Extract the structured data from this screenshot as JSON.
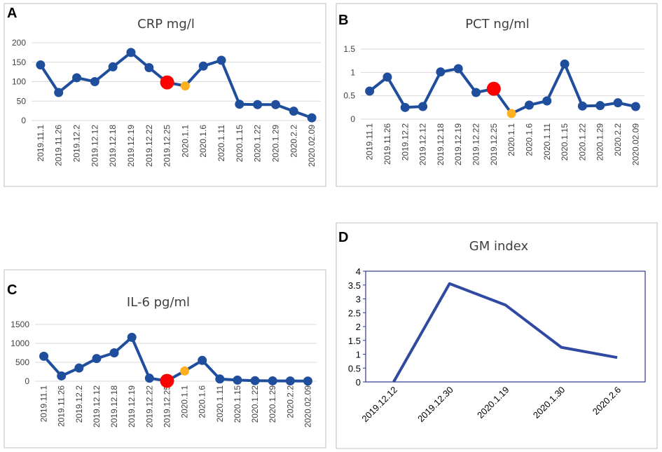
{
  "colors": {
    "line": "#1f4e9c",
    "marker": "#1f4e9c",
    "highlight_large": "#ff0000",
    "highlight_small": "#ffb020",
    "grid": "#d9d9d9",
    "panel_border": "#bfbfbf",
    "gm_line": "#2f4aa0",
    "gm_border": "#2f3a8f"
  },
  "chart_data": [
    {
      "panel": "A",
      "type": "line",
      "title": "CRP mg/l",
      "categories": [
        "2019.11.1",
        "2019.11.26",
        "2019.12.2",
        "2019.12.12",
        "2019.12.18",
        "2019.12.19",
        "2019.12.22",
        "2019.12.25",
        "2020.1.1",
        "2020.1.6",
        "2020.1.11",
        "2020.1.15",
        "2020.1.22",
        "2020.1.29",
        "2020.2.2",
        "2020.02.09"
      ],
      "values": [
        143,
        72,
        110,
        100,
        138,
        175,
        136,
        98,
        89,
        140,
        155,
        42,
        41,
        41,
        24,
        7
      ],
      "highlights": [
        {
          "index": 7,
          "color": "red",
          "size": "large"
        },
        {
          "index": 8,
          "color": "orange",
          "size": "small"
        }
      ],
      "ylim": [
        0,
        200
      ],
      "yticks": [
        "0",
        "50",
        "100",
        "150",
        "200"
      ],
      "ytick_values": [
        0,
        50,
        100,
        150,
        200
      ],
      "grid": true
    },
    {
      "panel": "B",
      "type": "line",
      "title": "PCT ng/ml",
      "categories": [
        "2019.11.1",
        "2019.11.26",
        "2019.12.2",
        "2019.12.12",
        "2019.12.18",
        "2019.12.19",
        "2019.12.22",
        "2019.12.25",
        "2020.1.1",
        "2020.1.6",
        "2020.1.11",
        "2020.1.15",
        "2020.1.22",
        "2020.1.29",
        "2020.2.2",
        "2020.02.09"
      ],
      "values": [
        0.6,
        0.9,
        0.25,
        0.27,
        1.01,
        1.08,
        0.57,
        0.65,
        0.12,
        0.3,
        0.39,
        1.18,
        0.28,
        0.29,
        0.35,
        0.27
      ],
      "highlights": [
        {
          "index": 7,
          "color": "red",
          "size": "large"
        },
        {
          "index": 8,
          "color": "orange",
          "size": "small"
        }
      ],
      "ylim": [
        0,
        1.5
      ],
      "yticks": [
        "0",
        "0.5",
        "1",
        "1.5"
      ],
      "ytick_values": [
        0,
        0.5,
        1,
        1.5
      ],
      "grid": true
    },
    {
      "panel": "C",
      "type": "line",
      "title": "IL-6 pg/ml",
      "categories": [
        "2019.11.1",
        "2019.11.26",
        "2019.12.2",
        "2019.12.12",
        "2019.12.18",
        "2019.12.19",
        "2019.12.22",
        "2019.12.25",
        "2020.1.1",
        "2020.1.6",
        "2020.1.11",
        "2020.1.15",
        "2020.1.22",
        "2020.1.29",
        "2020.2.2",
        "2020.02.09"
      ],
      "values": [
        660,
        140,
        350,
        600,
        750,
        1160,
        80,
        10,
        270,
        550,
        60,
        30,
        15,
        10,
        8,
        5
      ],
      "highlights": [
        {
          "index": 7,
          "color": "red",
          "size": "large"
        },
        {
          "index": 8,
          "color": "orange",
          "size": "small"
        }
      ],
      "ylim": [
        0,
        1500
      ],
      "yticks": [
        "0",
        "500",
        "1000",
        "1500"
      ],
      "ytick_values": [
        0,
        500,
        1000,
        1500
      ],
      "grid": true
    },
    {
      "panel": "D",
      "type": "line",
      "title": "GM index",
      "categories": [
        "2019.12.12",
        "2019.12.30",
        "2020.1.19",
        "2020.1.30",
        "2020.2.6"
      ],
      "values": [
        0,
        3.55,
        2.78,
        1.25,
        0.88
      ],
      "ylim": [
        0,
        4
      ],
      "yticks": [
        "0",
        "0.5",
        "1",
        "1.5",
        "2",
        "2.5",
        "3",
        "3.5",
        "4"
      ],
      "ytick_values": [
        0,
        0.5,
        1,
        1.5,
        2,
        2.5,
        3,
        3.5,
        4
      ],
      "grid": false
    }
  ]
}
